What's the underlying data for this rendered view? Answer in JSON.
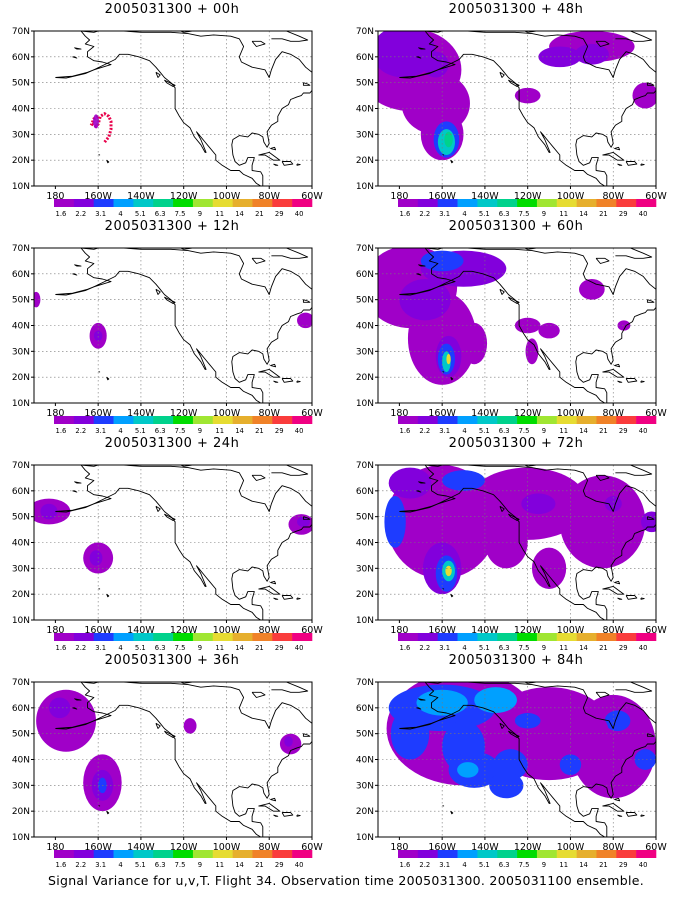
{
  "panels": [
    {
      "title": "2005031300 + 00h",
      "lead": "00h"
    },
    {
      "title": "2005031300 + 48h",
      "lead": "48h"
    },
    {
      "title": "2005031300 + 12h",
      "lead": "12h"
    },
    {
      "title": "2005031300 + 60h",
      "lead": "60h"
    },
    {
      "title": "2005031300 + 24h",
      "lead": "24h"
    },
    {
      "title": "2005031300 + 72h",
      "lead": "72h"
    },
    {
      "title": "2005031300 + 36h",
      "lead": "36h"
    },
    {
      "title": "2005031300 + 84h",
      "lead": "84h"
    }
  ],
  "axes": {
    "lat_labels": [
      "10N",
      "20N",
      "30N",
      "40N",
      "50N",
      "60N",
      "70N"
    ],
    "lat_values": [
      10,
      20,
      30,
      40,
      50,
      60,
      70
    ],
    "lon_labels": [
      "180",
      "160W",
      "140W",
      "120W",
      "100W",
      "80W",
      "60W"
    ],
    "lon_values": [
      -180,
      -160,
      -140,
      -120,
      -100,
      -80,
      -60
    ],
    "lon_range": [
      -190,
      -60
    ],
    "lat_range": [
      10,
      70
    ]
  },
  "colorbar": {
    "labels": [
      "1.6",
      "2.2",
      "3.1",
      "4",
      "5.1",
      "6.3",
      "7.5",
      "9",
      "11",
      "14",
      "21",
      "29",
      "40"
    ],
    "colors": [
      "#a000c8",
      "#8200dc",
      "#1e3cff",
      "#00a0ff",
      "#00c8c8",
      "#00d28c",
      "#00dc00",
      "#a0e632",
      "#e6dc32",
      "#e6af2d",
      "#f08228",
      "#fa3c3c",
      "#f00082"
    ]
  },
  "footer": "Signal Variance for u,v,T. Flight 34. Observation time 2005031300. 2005031100 ensemble."
}
